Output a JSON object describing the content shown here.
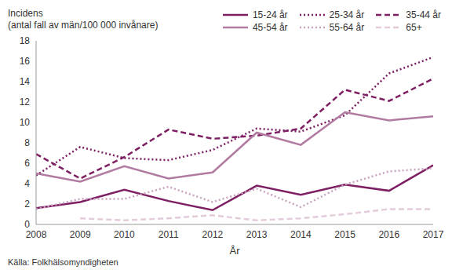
{
  "chart_data": {
    "type": "line",
    "y_label": [
      "Incidens",
      "(antal fall av män/100 000 invånare)"
    ],
    "x_label": "År",
    "source": "Källa: Folkhälsomyndigheten",
    "x": [
      2008,
      2009,
      2010,
      2011,
      2012,
      2013,
      2014,
      2015,
      2016,
      2017
    ],
    "xlim": [
      2008,
      2017
    ],
    "xticks": [
      2008,
      2009,
      2010,
      2011,
      2012,
      2013,
      2014,
      2015,
      2016,
      2017
    ],
    "ylim": [
      0,
      18
    ],
    "yticks": [
      0,
      2,
      4,
      6,
      8,
      10,
      12,
      14,
      16,
      18
    ],
    "grid": false,
    "legend": "top-right",
    "series": [
      {
        "name": "15-24 år",
        "color": "#7d1f62",
        "line_style": "solid",
        "values": [
          1.6,
          2.2,
          3.4,
          2.3,
          1.4,
          3.8,
          2.9,
          3.9,
          3.3,
          5.8
        ]
      },
      {
        "name": "25-34 år",
        "color": "#7d1f62",
        "line_style": "dotted",
        "values": [
          4.8,
          7.6,
          6.5,
          6.3,
          7.3,
          9.4,
          9.1,
          10.7,
          14.8,
          16.4
        ]
      },
      {
        "name": "35-44 år",
        "color": "#7d1f62",
        "line_style": "dashed",
        "values": [
          6.9,
          4.5,
          6.6,
          9.3,
          8.4,
          8.7,
          9.4,
          13.2,
          12.1,
          14.3
        ]
      },
      {
        "name": "45-54 år",
        "color": "#b07aa1",
        "line_style": "solid",
        "values": [
          5.0,
          4.2,
          5.7,
          4.5,
          5.1,
          9.0,
          7.8,
          11.0,
          10.2,
          10.6
        ]
      },
      {
        "name": "55-64 år",
        "color": "#c9a3bf",
        "line_style": "dotted",
        "values": [
          1.5,
          2.5,
          2.5,
          3.7,
          2.2,
          3.5,
          1.7,
          3.9,
          5.2,
          5.5
        ]
      },
      {
        "name": "65+",
        "color": "#e3cbdc",
        "line_style": "dashed",
        "values": [
          null,
          0.6,
          0.4,
          0.6,
          0.9,
          0.4,
          0.6,
          1.0,
          1.5,
          1.5
        ]
      }
    ]
  }
}
